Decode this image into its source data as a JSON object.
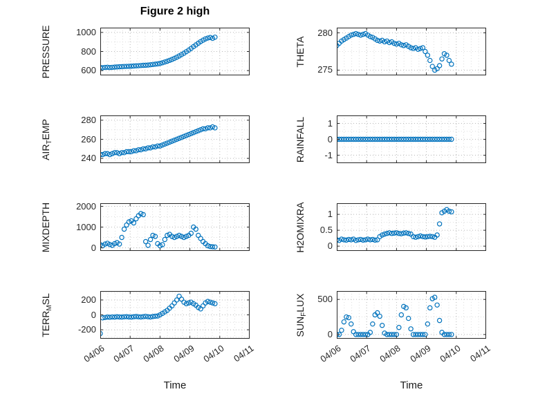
{
  "figure": {
    "title": "Figure 2 high",
    "xlabel": "Time",
    "xtick_labels": [
      "04/06",
      "04/07",
      "04/08",
      "04/09",
      "04/10",
      "04/11"
    ],
    "xlim": [
      0,
      5
    ],
    "marker_color": "#0072BD",
    "axis_color": "#262626",
    "grid_color": "#b5b5b5",
    "minor_grid_color": "#dddddd"
  },
  "chart_data": [
    {
      "id": "pressure",
      "type": "scatter",
      "ylabel": {
        "pre": "PRESSURE",
        "sub": "",
        "post": ""
      },
      "yticks": [
        600,
        800,
        1000
      ],
      "ylim": [
        550,
        1050
      ],
      "points": {
        "t_start": 0,
        "t_step": 0.08,
        "y": [
          632,
          630,
          633,
          635,
          632,
          634,
          636,
          638,
          640,
          641,
          643,
          644,
          645,
          646,
          648,
          650,
          651,
          653,
          655,
          656,
          658,
          661,
          664,
          667,
          670,
          675,
          682,
          690,
          698,
          707,
          717,
          728,
          740,
          753,
          767,
          782,
          798,
          815,
          833,
          851,
          869,
          887,
          904,
          919,
          932,
          941,
          947,
          938,
          950
        ]
      }
    },
    {
      "id": "theta",
      "type": "scatter",
      "ylabel": {
        "pre": "THETA",
        "sub": "",
        "post": ""
      },
      "yticks": [
        275,
        280
      ],
      "ylim": [
        274.3,
        280.7
      ],
      "points": {
        "t_start": 0,
        "t_step": 0.08,
        "y": [
          278.3,
          278.6,
          278.9,
          279.1,
          279.3,
          279.5,
          279.7,
          279.8,
          279.9,
          279.8,
          279.7,
          279.8,
          279.9,
          279.7,
          279.5,
          279.4,
          279.2,
          279.0,
          278.9,
          279.0,
          278.8,
          278.9,
          278.7,
          278.8,
          278.6,
          278.5,
          278.6,
          278.4,
          278.3,
          278.4,
          278.2,
          278.0,
          277.9,
          278.0,
          277.8,
          277.9,
          278.0,
          277.5,
          277.0,
          276.3,
          275.5,
          275.0,
          275.2,
          275.6,
          276.5,
          277.2,
          277.0,
          276.3,
          275.8
        ]
      }
    },
    {
      "id": "airtemp",
      "type": "scatter",
      "ylabel": {
        "pre": "AIR",
        "sub": "T",
        "post": "EMP"
      },
      "yticks": [
        240,
        260,
        280
      ],
      "ylim": [
        235,
        285
      ],
      "points": {
        "t_start": 0,
        "t_step": 0.08,
        "y": [
          244,
          244,
          245,
          245,
          244,
          245,
          246,
          246,
          245,
          246,
          246,
          247,
          247,
          247,
          248,
          248,
          249,
          249,
          250,
          250,
          251,
          251,
          252,
          252,
          253,
          253,
          254,
          255,
          256,
          257,
          258,
          259,
          260,
          261,
          262,
          263,
          264,
          265,
          266,
          267,
          268,
          269,
          270,
          271,
          271,
          272,
          272,
          273,
          272
        ]
      }
    },
    {
      "id": "rainfall",
      "type": "scatter",
      "ylabel": {
        "pre": "RAINFALL",
        "sub": "",
        "post": ""
      },
      "yticks": [
        -1,
        0,
        1
      ],
      "ylim": [
        -1.5,
        1.5
      ],
      "points": {
        "t_start": 0,
        "t_step": 0.08,
        "y": [
          0,
          0,
          0,
          0,
          0,
          0,
          0,
          0,
          0,
          0,
          0,
          0,
          0,
          0,
          0,
          0,
          0,
          0,
          0,
          0,
          0,
          0,
          0,
          0,
          0,
          0,
          0,
          0,
          0,
          0,
          0,
          0,
          0,
          0,
          0,
          0,
          0,
          0,
          0,
          0,
          0,
          0,
          0,
          0,
          0,
          0,
          0,
          0,
          0
        ]
      }
    },
    {
      "id": "mixdepth",
      "type": "scatter",
      "ylabel": {
        "pre": "MIXDEPTH",
        "sub": "",
        "post": ""
      },
      "yticks": [
        0,
        1000,
        2000
      ],
      "ylim": [
        -150,
        2150
      ],
      "points": {
        "t_start": 0,
        "t_step": 0.08,
        "y": [
          150,
          100,
          180,
          220,
          160,
          120,
          200,
          250,
          180,
          500,
          900,
          1100,
          1250,
          1300,
          1200,
          1400,
          1550,
          1650,
          1600,
          300,
          120,
          400,
          600,
          550,
          200,
          100,
          150,
          400,
          600,
          650,
          550,
          500,
          550,
          600,
          550,
          500,
          550,
          600,
          700,
          1000,
          900,
          600,
          450,
          300,
          200,
          100,
          60,
          50,
          40
        ]
      }
    },
    {
      "id": "h2omixra",
      "type": "scatter",
      "ylabel": {
        "pre": "H2OMIXRA",
        "sub": "",
        "post": ""
      },
      "yticks": [
        0,
        0.5,
        1
      ],
      "ylim": [
        -0.15,
        1.35
      ],
      "points": {
        "t_start": 0,
        "t_step": 0.08,
        "y": [
          0.2,
          0.18,
          0.22,
          0.2,
          0.19,
          0.21,
          0.2,
          0.22,
          0.18,
          0.2,
          0.21,
          0.19,
          0.2,
          0.22,
          0.2,
          0.21,
          0.19,
          0.2,
          0.3,
          0.35,
          0.38,
          0.4,
          0.42,
          0.4,
          0.41,
          0.42,
          0.4,
          0.39,
          0.41,
          0.42,
          0.4,
          0.38,
          0.3,
          0.28,
          0.3,
          0.32,
          0.3,
          0.29,
          0.3,
          0.31,
          0.3,
          0.28,
          0.35,
          0.7,
          1.05,
          1.1,
          1.15,
          1.1,
          1.08
        ]
      }
    },
    {
      "id": "terrmsl",
      "type": "scatter",
      "ylabel": {
        "pre": "TERR",
        "sub": "M",
        "post": "SL"
      },
      "yticks": [
        -200,
        0,
        200
      ],
      "ylim": [
        -320,
        320
      ],
      "points": {
        "t_start": 0,
        "t_step": 0.08,
        "y": [
          -250,
          -40,
          -35,
          -30,
          -32,
          -28,
          -30,
          -25,
          -28,
          -30,
          -26,
          -24,
          -28,
          -30,
          -25,
          -22,
          -26,
          -28,
          -24,
          -20,
          -25,
          -28,
          -22,
          -18,
          -15,
          0,
          20,
          40,
          60,
          90,
          120,
          160,
          200,
          250,
          210,
          170,
          150,
          160,
          170,
          150,
          130,
          100,
          80,
          120,
          160,
          180,
          170,
          160,
          150
        ]
      }
    },
    {
      "id": "sunflux",
      "type": "scatter",
      "ylabel": {
        "pre": "SUN",
        "sub": "F",
        "post": "LUX"
      },
      "yticks": [
        0,
        500
      ],
      "ylim": [
        -60,
        620
      ],
      "points": {
        "t_start": 0,
        "t_step": 0.08,
        "y": [
          0,
          0,
          60,
          180,
          250,
          240,
          150,
          40,
          0,
          0,
          0,
          0,
          0,
          0,
          30,
          150,
          280,
          310,
          260,
          130,
          20,
          0,
          0,
          0,
          0,
          0,
          100,
          280,
          400,
          380,
          230,
          80,
          0,
          0,
          0,
          0,
          0,
          0,
          150,
          380,
          510,
          530,
          420,
          200,
          30,
          0,
          0,
          0,
          0
        ]
      }
    }
  ]
}
